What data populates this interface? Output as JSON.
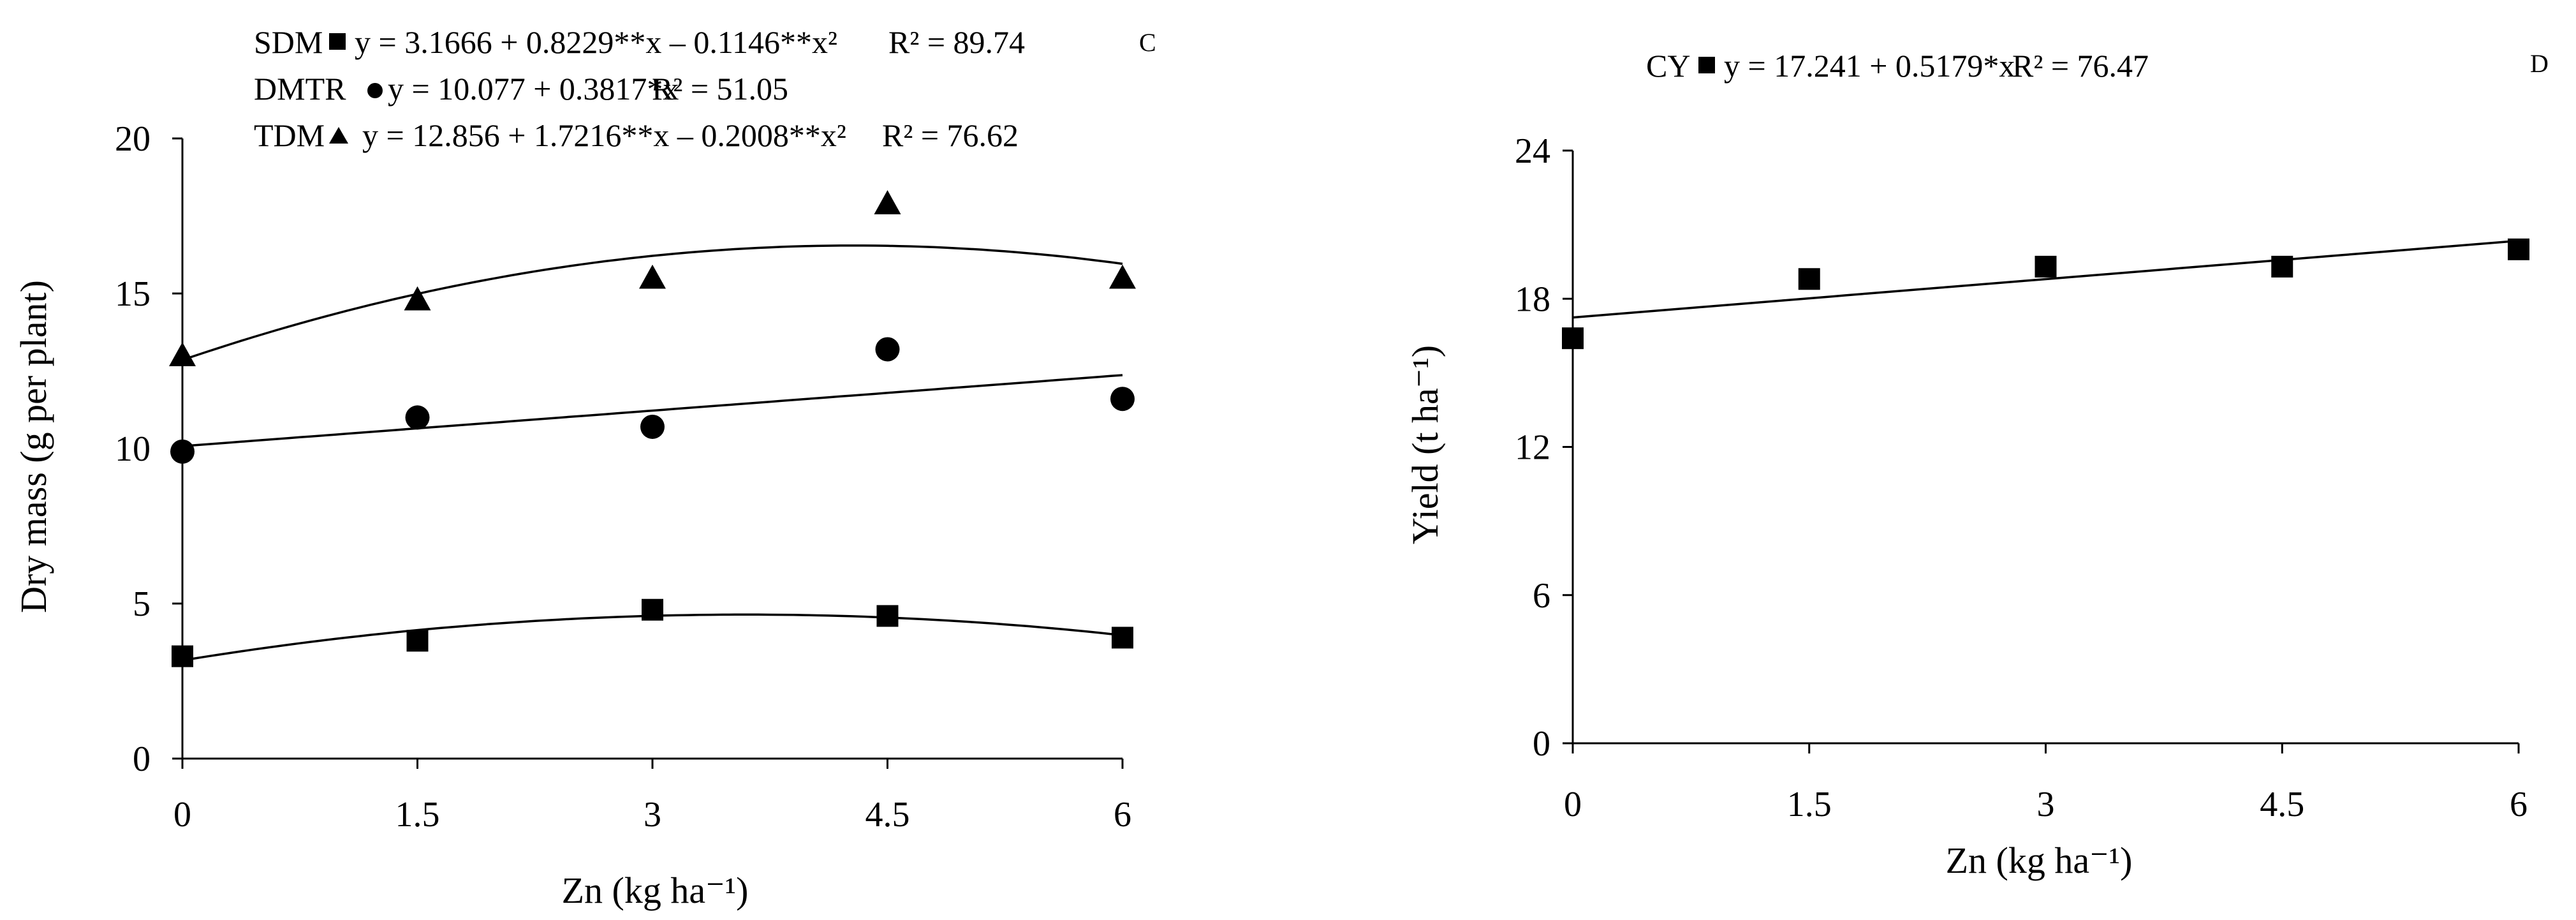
{
  "chart_data": [
    {
      "type": "scatter",
      "panel_letter": "C",
      "xlabel": "Zn (kg ha⁻¹)",
      "ylabel": "Dry mass (g per plant)",
      "xlim": [
        0,
        6
      ],
      "ylim": [
        0,
        20
      ],
      "x_ticks": [
        0,
        1.5,
        3,
        4.5,
        6
      ],
      "x_tick_labels": [
        "0",
        "1.5",
        "3",
        "4.5",
        "6"
      ],
      "y_ticks": [
        0,
        5,
        10,
        15,
        20
      ],
      "y_tick_labels": [
        "0",
        "5",
        "10",
        "15",
        "20"
      ],
      "grid": false,
      "x": [
        0,
        1.5,
        3,
        4.5,
        6
      ],
      "series": [
        {
          "name": "SDM",
          "marker": "square",
          "values": [
            3.3,
            3.8,
            4.8,
            4.6,
            3.9
          ],
          "fit": {
            "type": "quadratic",
            "a": 3.1666,
            "b": 0.8229,
            "c": -0.1146
          },
          "equation": "y = 3.1666 + 0.8229**x – 0.1146**x²",
          "r2": "R² = 89.74"
        },
        {
          "name": "DMTR",
          "marker": "circle",
          "values": [
            9.9,
            11.0,
            10.7,
            13.2,
            11.6
          ],
          "fit": {
            "type": "linear",
            "a": 10.077,
            "b": 0.3817
          },
          "equation": "y = 10.077 + 0.3817*x",
          "r2": "R² = 51.05"
        },
        {
          "name": "TDM",
          "marker": "triangle",
          "values": [
            13.0,
            14.8,
            15.5,
            17.9,
            15.5
          ],
          "fit": {
            "type": "quadratic",
            "a": 12.856,
            "b": 1.7216,
            "c": -0.2008
          },
          "equation": "y = 12.856 + 1.7216**x – 0.2008**x²",
          "r2": "R² = 76.62"
        }
      ]
    },
    {
      "type": "scatter",
      "panel_letter": "D",
      "xlabel": "Zn (kg ha⁻¹)",
      "ylabel": "Yield (t ha⁻¹)",
      "xlim": [
        0,
        6
      ],
      "ylim": [
        0,
        24
      ],
      "x_ticks": [
        0,
        1.5,
        3,
        4.5,
        6
      ],
      "x_tick_labels": [
        "0",
        "1.5",
        "3",
        "4.5",
        "6"
      ],
      "y_ticks": [
        0,
        6,
        12,
        18,
        24
      ],
      "y_tick_labels": [
        "0",
        "6",
        "12",
        "18",
        "24"
      ],
      "grid": false,
      "x": [
        0,
        1.5,
        3,
        4.5,
        6
      ],
      "series": [
        {
          "name": "CY",
          "marker": "square",
          "values": [
            16.4,
            18.8,
            19.3,
            19.3,
            20.0
          ],
          "fit": {
            "type": "linear",
            "a": 17.241,
            "b": 0.5179
          },
          "equation": "y = 17.241 + 0.5179*x",
          "r2": "R² = 76.47"
        }
      ]
    }
  ]
}
